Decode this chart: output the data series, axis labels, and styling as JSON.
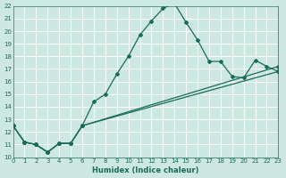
{
  "xlabel": "Humidex (Indice chaleur)",
  "xlim": [
    0,
    23
  ],
  "ylim": [
    10,
    22
  ],
  "xticks": [
    0,
    1,
    2,
    3,
    4,
    5,
    6,
    7,
    8,
    9,
    10,
    11,
    12,
    13,
    14,
    15,
    16,
    17,
    18,
    19,
    20,
    21,
    22,
    23
  ],
  "yticks": [
    10,
    11,
    12,
    13,
    14,
    15,
    16,
    17,
    18,
    19,
    20,
    21,
    22
  ],
  "bg_color": "#cce8e0",
  "grid_color": "#ffffff",
  "line_color": "#1a6b5a",
  "main_x": [
    0,
    1,
    2,
    3,
    4,
    5,
    6,
    7,
    8,
    9,
    10,
    11,
    12,
    13,
    14,
    15,
    16,
    17,
    18,
    19,
    20,
    21,
    22,
    23
  ],
  "main_y": [
    12.5,
    11.2,
    11.0,
    10.4,
    11.1,
    11.1,
    12.5,
    14.4,
    15.0,
    16.6,
    18.0,
    19.7,
    20.8,
    21.8,
    22.2,
    20.7,
    19.3,
    17.6,
    17.6,
    16.4,
    16.3,
    17.7,
    17.2,
    16.8
  ],
  "line2_x": [
    0,
    1,
    2,
    3,
    4,
    5,
    6,
    23
  ],
  "line2_y": [
    12.5,
    11.2,
    11.0,
    10.4,
    11.1,
    11.1,
    12.5,
    16.8
  ],
  "line3_x": [
    0,
    1,
    2,
    3,
    4,
    5,
    6,
    23
  ],
  "line3_y": [
    12.5,
    11.2,
    11.0,
    10.4,
    11.1,
    11.1,
    12.5,
    17.2
  ]
}
